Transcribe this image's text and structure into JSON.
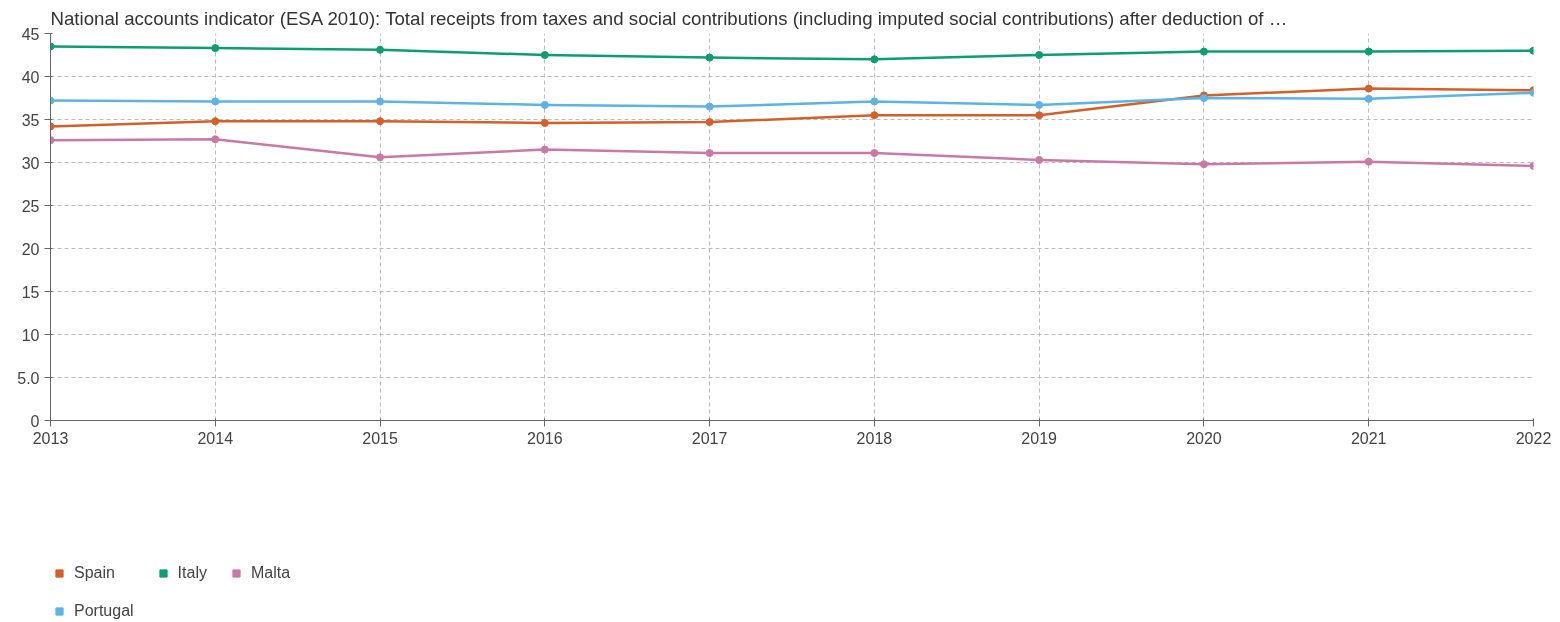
{
  "chart_data": {
    "type": "line",
    "title": "National accounts indicator (ESA 2010): Total receipts from taxes and social contributions (including imputed social contributions) after deduction of …",
    "x": [
      2013,
      2014,
      2015,
      2016,
      2017,
      2018,
      2019,
      2020,
      2021,
      2022
    ],
    "xlim": [
      2013,
      2022
    ],
    "xticks": [
      2013,
      2014,
      2015,
      2016,
      2017,
      2018,
      2019,
      2020,
      2021,
      2022
    ],
    "ylim": [
      0,
      45
    ],
    "yticks": [
      0,
      {
        "value": 5,
        "label": "5.0"
      },
      10,
      15,
      20,
      25,
      30,
      35,
      40,
      45
    ],
    "grid": true,
    "legend": "bottom left",
    "marker": "circle",
    "line_style": "solid",
    "series": [
      {
        "name": "Spain",
        "color": "#d45f27",
        "values": [
          34.2,
          34.8,
          34.8,
          34.6,
          34.7,
          35.5,
          35.5,
          37.8,
          38.6,
          38.4
        ]
      },
      {
        "name": "Italy",
        "color": "#0b9e72",
        "values": [
          43.5,
          43.3,
          43.1,
          42.5,
          42.2,
          42.0,
          42.5,
          42.9,
          42.9,
          43.0
        ]
      },
      {
        "name": "Malta",
        "color": "#cc78a7",
        "values": [
          32.6,
          32.7,
          30.6,
          31.5,
          31.1,
          31.1,
          30.3,
          29.8,
          30.1,
          29.6
        ]
      },
      {
        "name": "Portugal",
        "color": "#5cb3e6",
        "values": [
          37.2,
          37.1,
          37.1,
          36.7,
          36.5,
          37.1,
          36.7,
          37.5,
          37.4,
          38.1
        ]
      }
    ]
  }
}
